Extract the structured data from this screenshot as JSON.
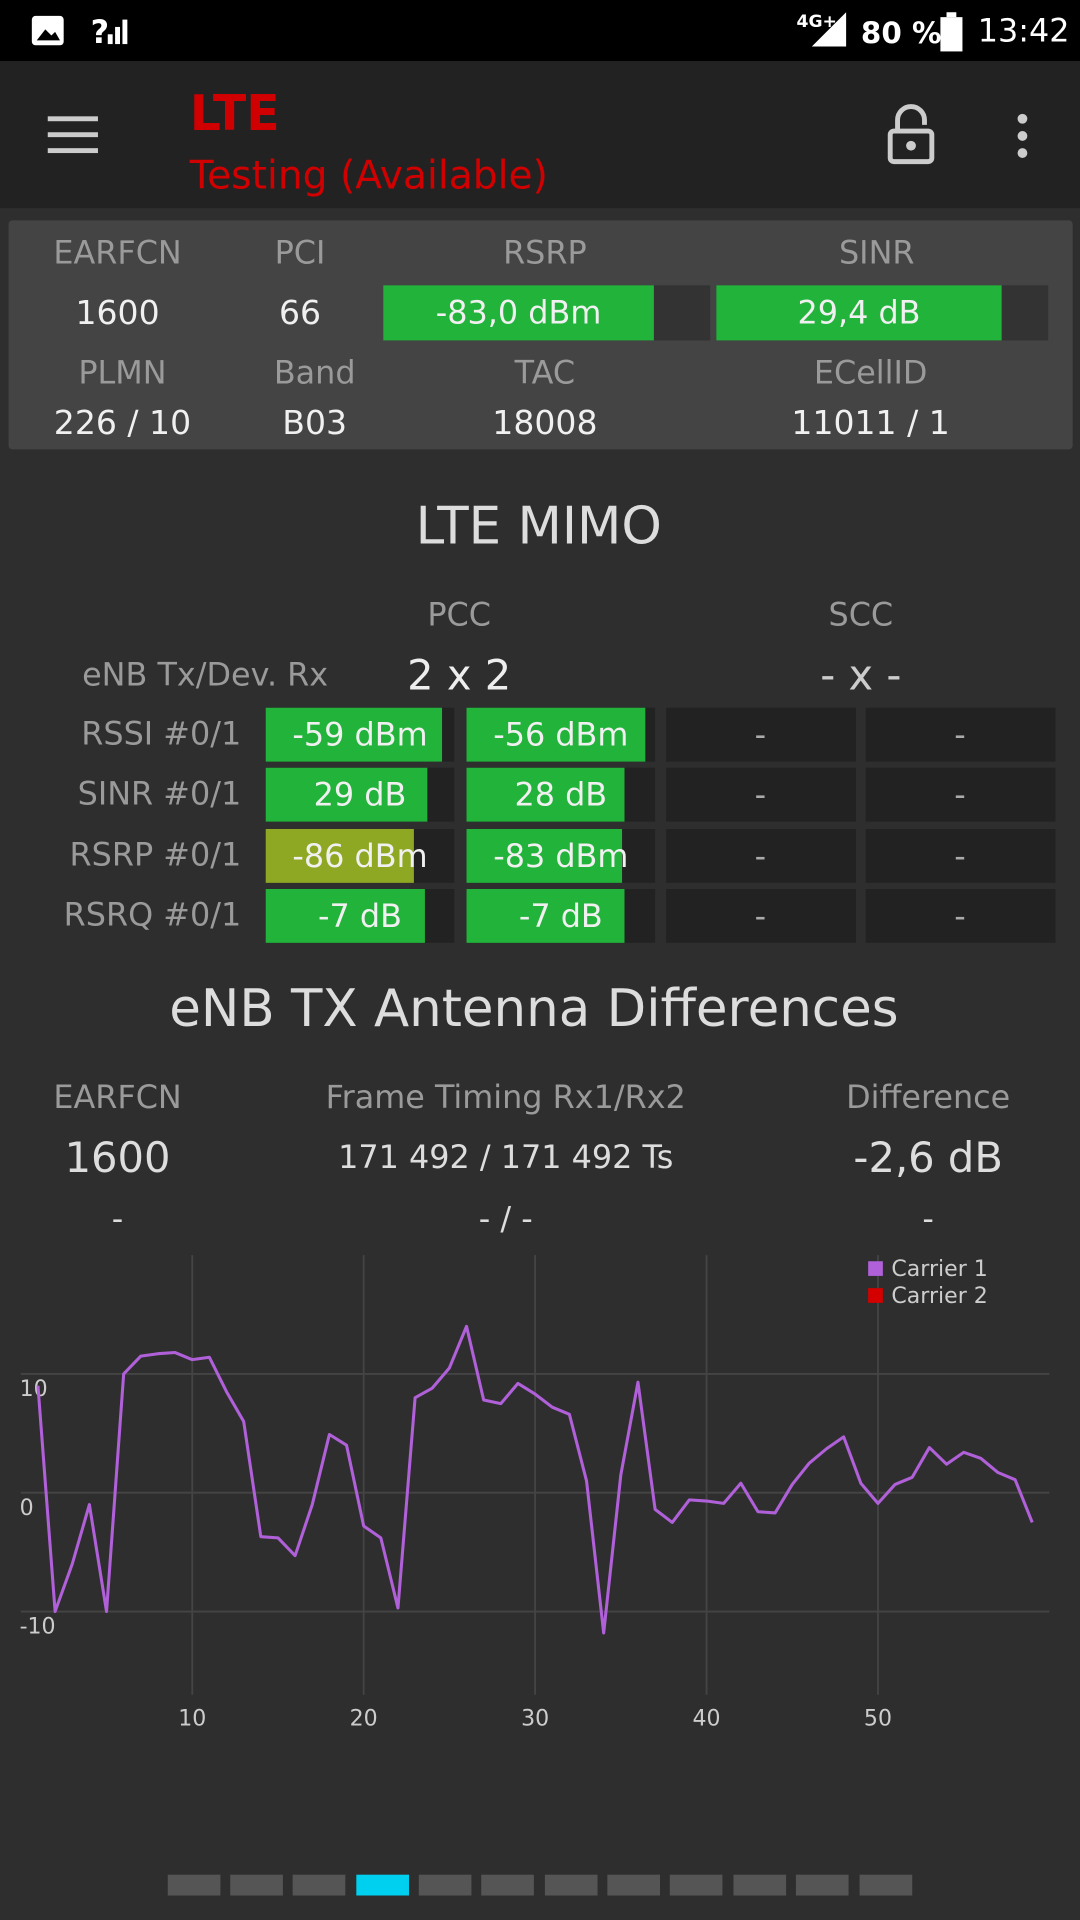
{
  "status": {
    "network": "4G+",
    "battery": "80 %",
    "time": "13:42"
  },
  "header": {
    "title": "LTE",
    "subtitle": "Testing (Available)"
  },
  "cell": {
    "headers1": [
      "EARFCN",
      "PCI",
      "RSRP",
      "SINR"
    ],
    "values1": [
      "1600",
      "66",
      "-83,0 dBm",
      "29,4 dB"
    ],
    "headers2": [
      "PLMN",
      "Band",
      "TAC",
      "ECellID"
    ],
    "values2": [
      "226 / 10",
      "B03",
      "18008",
      "11011 / 1"
    ]
  },
  "mimo": {
    "title": "LTE MIMO",
    "columns": [
      "PCC",
      "SCC"
    ],
    "config": {
      "label": "eNB Tx/Dev. Rx",
      "values": [
        "2 x 2",
        "- x -"
      ]
    },
    "rows": [
      {
        "label": "RSSI #0/1",
        "values": [
          "-59 dBm",
          "-56 dBm",
          "-",
          "-"
        ]
      },
      {
        "label": "SINR #0/1",
        "values": [
          "29 dB",
          "28 dB",
          "-",
          "-"
        ]
      },
      {
        "label": "RSRP #0/1",
        "values": [
          "-86 dBm",
          "-83 dBm",
          "-",
          "-"
        ]
      },
      {
        "label": "RSRQ #0/1",
        "values": [
          "-7 dB",
          "-7 dB",
          "-",
          "-"
        ]
      }
    ]
  },
  "diff": {
    "title": "eNB TX Antenna Differences",
    "headers": [
      "EARFCN",
      "Frame Timing Rx1/Rx2",
      "Difference"
    ],
    "rows": [
      [
        "1600",
        "171 492 / 171 492 Ts",
        "-2,6 dB"
      ],
      [
        "-",
        "- / -",
        "-"
      ]
    ]
  },
  "chart_data": {
    "type": "line",
    "x": [
      1,
      2,
      3,
      4,
      5,
      6,
      7,
      8,
      9,
      10,
      11,
      12,
      13,
      14,
      15,
      16,
      17,
      18,
      19,
      20,
      21,
      22,
      23,
      24,
      25,
      26,
      27,
      28,
      29,
      30,
      31,
      32,
      33,
      34,
      35,
      36,
      37,
      38,
      39,
      40,
      41,
      42,
      43,
      44,
      45,
      46,
      47,
      48,
      49,
      50,
      51,
      52,
      53,
      54,
      55,
      56,
      57,
      58,
      59
    ],
    "series": [
      {
        "name": "Carrier 1",
        "color": "#b060d8",
        "values": [
          9,
          -10,
          -6,
          -1,
          -10,
          10,
          11.5,
          11.7,
          11.8,
          11.2,
          11.4,
          8.5,
          6,
          -3.7,
          -3.8,
          -5.3,
          -1,
          4.9,
          4,
          -2.8,
          -3.8,
          -9.7,
          8,
          8.8,
          10.5,
          14,
          7.8,
          7.5,
          9.2,
          8.3,
          7.2,
          6.6,
          1,
          -11.8,
          1.5,
          9.3,
          -1.4,
          -2.5,
          -0.6,
          -0.7,
          -0.9,
          0.8,
          -1.6,
          -1.7,
          0.7,
          2.5,
          3.7,
          4.7,
          0.8,
          -0.9,
          0.7,
          1.3,
          3.8,
          2.4,
          3.4,
          2.9,
          1.7,
          1.1,
          -2.5
        ]
      },
      {
        "name": "Carrier 2",
        "color": "#d40000",
        "values": [
          null,
          null,
          null,
          null,
          null,
          null,
          null,
          null,
          null,
          null,
          null,
          null,
          null,
          null,
          null,
          null,
          null,
          null,
          null,
          null,
          null,
          null,
          null,
          null,
          null,
          null,
          null,
          null,
          null,
          null,
          null,
          null,
          null,
          null,
          null,
          null,
          null,
          null,
          null,
          null,
          null,
          null,
          null,
          null,
          null,
          null,
          null,
          null,
          null,
          null,
          null,
          null,
          null,
          null,
          null,
          null,
          null,
          null,
          null
        ]
      }
    ],
    "xlim": [
      0,
      60
    ],
    "ylim": [
      -17,
      20
    ],
    "xticks": [
      10,
      20,
      30,
      40,
      50
    ],
    "yticks": [
      -10,
      0,
      10
    ],
    "grid": true,
    "legend": "upper right"
  }
}
